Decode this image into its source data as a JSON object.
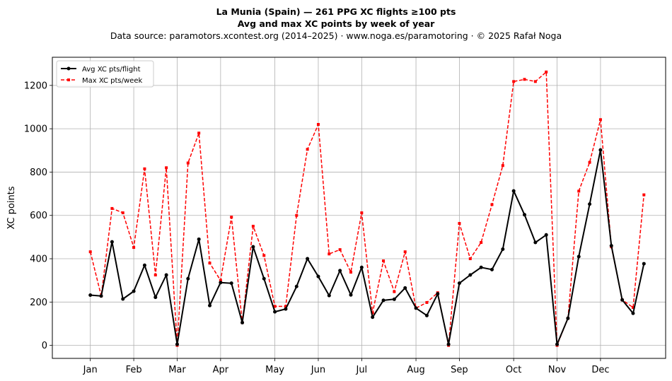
{
  "header": {
    "title": "La Munia (Spain)  —  261 PPG XC flights ≥100 pts",
    "subtitle": "Avg and max XC points by week of year",
    "source": "Data source: paramotors.xcontest.org (2014–2025)  ·  www.noga.es/paramotoring  ·  © 2025 Rafał Noga"
  },
  "chart_data": {
    "type": "line",
    "title": "La Munia (Spain)  —  261 PPG XC flights ≥100 pts",
    "subtitle": "Avg and max XC points by week of year",
    "xlabel": "",
    "ylabel": "XC points",
    "xlim": [
      -2.5,
      54
    ],
    "ylim": [
      -60,
      1330
    ],
    "grid": true,
    "legend_position": "top-left",
    "x_ticks": [
      {
        "label": "Jan",
        "x": 1
      },
      {
        "label": "Feb",
        "x": 5
      },
      {
        "label": "Mar",
        "x": 9
      },
      {
        "label": "Apr",
        "x": 13
      },
      {
        "label": "May",
        "x": 18
      },
      {
        "label": "Jun",
        "x": 22
      },
      {
        "label": "Jul",
        "x": 26
      },
      {
        "label": "Aug",
        "x": 31
      },
      {
        "label": "Sep",
        "x": 35
      },
      {
        "label": "Oct",
        "x": 40
      },
      {
        "label": "Nov",
        "x": 44
      },
      {
        "label": "Dec",
        "x": 48
      }
    ],
    "y_ticks": [
      0,
      200,
      400,
      600,
      800,
      1000,
      1200
    ],
    "series": [
      {
        "name": "Avg XC pts/flight",
        "color": "#000000",
        "style": "solid",
        "marker": "circle",
        "points": [
          [
            1,
            232
          ],
          [
            2,
            228
          ],
          [
            3,
            478
          ],
          [
            4,
            214
          ],
          [
            5,
            250
          ],
          [
            6,
            370
          ],
          [
            7,
            222
          ],
          [
            8,
            325
          ],
          [
            9,
            5
          ],
          [
            10,
            308
          ],
          [
            11,
            490
          ],
          [
            12,
            184
          ],
          [
            13,
            290
          ],
          [
            14,
            287
          ],
          [
            15,
            105
          ],
          [
            16,
            455
          ],
          [
            17,
            308
          ],
          [
            18,
            155
          ],
          [
            19,
            168
          ],
          [
            20,
            272
          ],
          [
            21,
            400
          ],
          [
            22,
            318
          ],
          [
            23,
            230
          ],
          [
            24,
            345
          ],
          [
            25,
            233
          ],
          [
            26,
            360
          ],
          [
            27,
            130
          ],
          [
            28,
            208
          ],
          [
            29,
            213
          ],
          [
            30,
            265
          ],
          [
            31,
            172
          ],
          [
            32,
            138
          ],
          [
            33,
            238
          ],
          [
            34,
            5
          ],
          [
            35,
            287
          ],
          [
            36,
            325
          ],
          [
            37,
            360
          ],
          [
            38,
            350
          ],
          [
            39,
            444
          ],
          [
            40,
            713
          ],
          [
            41,
            603
          ],
          [
            42,
            475
          ],
          [
            43,
            510
          ],
          [
            44,
            5
          ],
          [
            45,
            125
          ],
          [
            46,
            410
          ],
          [
            47,
            652
          ],
          [
            48,
            902
          ],
          [
            49,
            460
          ],
          [
            50,
            210
          ],
          [
            51,
            148
          ],
          [
            52,
            377
          ]
        ]
      },
      {
        "name": "Max XC pts/week",
        "color": "#ff0000",
        "style": "dashed",
        "marker": "square",
        "points": [
          [
            1,
            432
          ],
          [
            2,
            228
          ],
          [
            3,
            632
          ],
          [
            4,
            612
          ],
          [
            5,
            452
          ],
          [
            6,
            815
          ],
          [
            7,
            325
          ],
          [
            8,
            820
          ],
          [
            9,
            0
          ],
          [
            10,
            842
          ],
          [
            11,
            980
          ],
          [
            12,
            380
          ],
          [
            13,
            300
          ],
          [
            14,
            592
          ],
          [
            15,
            105
          ],
          [
            16,
            550
          ],
          [
            17,
            415
          ],
          [
            18,
            180
          ],
          [
            19,
            180
          ],
          [
            20,
            600
          ],
          [
            21,
            905
          ],
          [
            22,
            1020
          ],
          [
            23,
            422
          ],
          [
            24,
            442
          ],
          [
            25,
            338
          ],
          [
            26,
            612
          ],
          [
            27,
            150
          ],
          [
            28,
            390
          ],
          [
            29,
            248
          ],
          [
            30,
            432
          ],
          [
            31,
            172
          ],
          [
            32,
            198
          ],
          [
            33,
            243
          ],
          [
            34,
            0
          ],
          [
            35,
            563
          ],
          [
            36,
            400
          ],
          [
            37,
            475
          ],
          [
            38,
            650
          ],
          [
            39,
            830
          ],
          [
            40,
            1218
          ],
          [
            41,
            1228
          ],
          [
            42,
            1218
          ],
          [
            43,
            1262
          ],
          [
            44,
            0
          ],
          [
            45,
            125
          ],
          [
            46,
            712
          ],
          [
            47,
            845
          ],
          [
            48,
            1042
          ],
          [
            49,
            455
          ],
          [
            50,
            210
          ],
          [
            51,
            175
          ],
          [
            52,
            695
          ]
        ]
      }
    ]
  }
}
